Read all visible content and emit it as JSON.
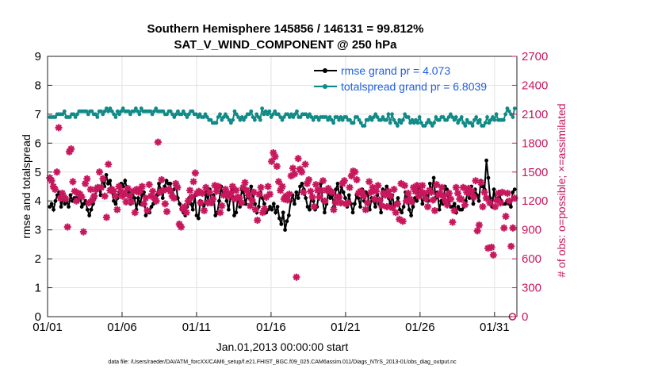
{
  "chart_data": {
    "type": "line",
    "title": "Southern Hemisphere 145856 / 146131 = 99.812%",
    "subtitle": "SAT_V_WIND_COMPONENT @ 250 hPa",
    "xlabel": "Jan.01,2013 00:00:00 start",
    "ylabel": "rmse and totalspread",
    "ylabel_right": "# of obs: o=possible; ×=assimilated",
    "footnote": "data file: /Users/raeder/DAI/ATM_forcXX/CAM6_setup/f.e21.FHIST_BGC.f09_025.CAM6assim.011/Diags_NTrS_2013-01/obs_diag_output.nc",
    "xlim": [
      0,
      31.5
    ],
    "ylim": [
      0,
      9
    ],
    "ylim_right": [
      0,
      2700
    ],
    "x_ticks": [
      0,
      5,
      10,
      15,
      20,
      25,
      30
    ],
    "x_tick_labels": [
      "01/01",
      "01/06",
      "01/11",
      "01/16",
      "01/21",
      "01/26",
      "01/31"
    ],
    "y_ticks": [
      "0",
      "1",
      "2",
      "3",
      "4",
      "5",
      "6",
      "7",
      "8",
      "9"
    ],
    "y_ticks_right": [
      "0",
      "300",
      "600",
      "900",
      "1200",
      "1500",
      "1800",
      "2100",
      "2400",
      "2700"
    ],
    "grid": true,
    "legend_position": "top-right",
    "series": [
      {
        "name": "rmse grand pr = 4.073",
        "color": "#000000",
        "marker": "circle",
        "values": [
          3.8,
          3.9,
          3.7,
          4.0,
          4.2,
          4.3,
          3.8,
          4.1,
          3.9,
          4.0,
          3.8,
          4.2,
          4.0,
          4.1,
          4.1,
          4.0,
          4.2,
          3.8,
          3.9,
          4.0,
          3.7,
          3.5,
          3.7,
          3.9,
          4.1,
          4.4,
          4.5,
          4.2,
          4.8,
          4.5,
          4.9,
          4.6,
          4.7,
          4.3,
          4.0,
          3.9,
          4.1,
          4.3,
          4.6,
          4.5,
          4.7,
          4.4,
          4.3,
          3.9,
          4.2,
          4.1,
          3.7,
          4.1,
          3.9,
          4.2,
          4.3,
          3.5,
          3.6,
          3.6,
          3.8,
          3.9,
          4.0,
          4.2,
          4.6,
          4.4,
          4.1,
          4.5,
          4.7,
          4.6,
          4.6,
          4.2,
          4.4,
          4.6,
          4.1,
          3.9,
          3.7,
          3.6,
          3.5,
          3.8,
          4.1,
          3.9,
          3.7,
          4.2,
          3.5,
          3.4,
          4.0,
          3.9,
          3.7,
          4.3,
          4.0,
          4.4,
          3.9,
          4.2,
          3.5,
          3.6,
          4.0,
          4.5,
          4.2,
          4.3,
          4.0,
          3.7,
          4.1,
          4.4,
          3.5,
          3.6,
          4.1,
          3.8,
          4.4,
          4.3,
          3.9,
          4.2,
          4.1,
          4.5,
          4.2,
          3.9,
          3.6,
          3.8,
          4.3,
          4.1,
          3.9,
          3.6,
          3.7,
          3.8,
          3.7,
          3.9,
          3.6,
          3.8,
          3.4,
          3.2,
          3.6,
          3.0,
          3.3,
          3.5,
          4.0,
          4.2,
          3.9,
          4.3,
          4.1,
          4.5,
          4.6,
          4.4,
          4.1,
          3.8,
          3.7,
          4.2,
          4.0,
          3.7,
          3.8,
          4.3,
          4.6,
          4.0,
          3.6,
          3.9,
          4.3,
          4.1,
          4.2,
          3.8,
          4.4,
          4.6,
          4.1,
          4.5,
          4.3,
          4.1,
          3.8,
          4.2,
          3.9,
          3.6,
          3.9,
          4.2,
          4.1,
          3.8,
          4.4,
          4.0,
          4.3,
          4.2,
          3.7,
          4.1,
          4.0,
          3.8,
          4.2,
          3.9,
          3.6,
          4.4,
          4.3,
          4.5,
          4.1,
          3.9,
          4.2,
          3.8,
          3.9,
          4.1,
          3.7,
          3.6,
          3.8,
          4.3,
          4.1,
          3.7,
          3.5,
          3.8,
          4.1,
          4.0,
          4.5,
          4.2,
          3.9,
          4.3,
          4.2,
          4.0,
          4.6,
          4.3,
          4.8,
          4.1,
          4.3,
          3.7,
          4.0,
          3.9,
          4.5,
          4.4,
          4.0,
          3.8,
          3.8,
          3.9,
          3.6,
          3.8,
          3.7,
          3.7,
          3.8,
          4.0,
          4.3,
          4.1,
          4.5,
          3.9,
          4.4,
          4.2,
          4.0,
          4.7,
          4.5,
          4.4,
          5.4,
          4.8,
          4.1,
          3.8,
          4.4,
          4.0,
          4.1,
          4.2,
          4.0,
          3.9,
          3.9,
          4.0,
          3.9,
          3.8,
          4.3,
          4.4
        ]
      },
      {
        "name": "totalspread grand pr = 6.8039",
        "color": "#108a86",
        "marker": "circle",
        "values": [
          6.9,
          6.9,
          6.9,
          6.9,
          7.0,
          7.0,
          7.0,
          7.0,
          7.1,
          6.9,
          6.9,
          6.9,
          7.0,
          7.0,
          6.9,
          7.0,
          7.1,
          7.1,
          7.1,
          7.1,
          7.1,
          7.0,
          7.1,
          7.1,
          7.0,
          7.0,
          6.9,
          7.1,
          7.1,
          7.0,
          7.1,
          7.2,
          7.1,
          7.2,
          7.1,
          7.0,
          6.9,
          7.1,
          7.0,
          7.1,
          7.2,
          7.1,
          7.1,
          7.1,
          7.0,
          7.1,
          7.1,
          7.2,
          7.1,
          7.0,
          7.2,
          7.1,
          7.1,
          7.1,
          7.1,
          7.1,
          7.0,
          7.1,
          7.2,
          7.1,
          7.1,
          7.1,
          7.1,
          7.0,
          7.0,
          7.1,
          7.1,
          7.0,
          6.9,
          7.0,
          7.1,
          7.0,
          7.0,
          7.1,
          7.0,
          6.9,
          7.0,
          7.1,
          7.1,
          7.0,
          7.0,
          6.9,
          7.0,
          6.9,
          6.9,
          7.0,
          6.9,
          6.8,
          6.8,
          6.7,
          6.7,
          6.7,
          6.9,
          7.0,
          6.8,
          6.9,
          7.0,
          6.9,
          6.8,
          6.7,
          6.8,
          7.1,
          7.0,
          6.9,
          6.8,
          6.9,
          6.8,
          6.9,
          7.0,
          7.0,
          7.1,
          6.9,
          6.8,
          7.0,
          6.9,
          6.8,
          7.2,
          7.0,
          7.1,
          7.0,
          7.1,
          6.9,
          7.0,
          7.1,
          7.0,
          7.0,
          6.9,
          6.8,
          6.9,
          7.0,
          7.0,
          6.9,
          7.0,
          6.9,
          7.0,
          7.1,
          6.9,
          6.9,
          7.0,
          7.0,
          7.0,
          6.9,
          7.0,
          6.9,
          6.8,
          6.9,
          6.9,
          6.8,
          6.9,
          6.9,
          6.9,
          6.9,
          6.8,
          6.9,
          6.8,
          6.7,
          6.9,
          6.9,
          6.8,
          6.9,
          6.8,
          6.9,
          6.9,
          6.8,
          6.8,
          6.7,
          6.7,
          6.9,
          6.9,
          6.8,
          6.7,
          6.6,
          6.6,
          6.8,
          6.8,
          6.9,
          6.8,
          6.9,
          7.0,
          6.9,
          6.8,
          6.8,
          6.9,
          6.8,
          6.8,
          7.0,
          6.7,
          7.0,
          6.8,
          6.7,
          6.6,
          6.8,
          6.7,
          6.8,
          7.0,
          6.9,
          6.9,
          6.7,
          6.8,
          6.7,
          6.8,
          6.7,
          6.9,
          6.7,
          6.6,
          6.6,
          6.7,
          6.8,
          6.7,
          6.6,
          6.7,
          6.9,
          6.8,
          6.8,
          6.9,
          6.9,
          6.8,
          6.8,
          6.9,
          7.0,
          6.9,
          6.8,
          6.9,
          6.7,
          6.8,
          6.9,
          6.7,
          6.6,
          6.8,
          6.7,
          6.7,
          6.6,
          6.8,
          6.9,
          6.7,
          6.8,
          6.6,
          6.6,
          6.7,
          6.9,
          6.7,
          6.8,
          6.9,
          6.8,
          7.0,
          6.8,
          6.8,
          6.8,
          6.8,
          7.0,
          7.2,
          7.1,
          7.0,
          6.9,
          7.2
        ]
      },
      {
        "name": "# of obs assimilated",
        "color": "#c8175d",
        "marker": "x",
        "axis": "right",
        "values": [
          1440,
          1410,
          1350,
          1320,
          1500,
          1960,
          1230,
          1280,
          1240,
          1220,
          930,
          1710,
          1740,
          1400,
          1300,
          1200,
          1280,
          1270,
          1240,
          880,
          1380,
          1430,
          1180,
          1320,
          1210,
          1250,
          1320,
          1340,
          1500,
          1340,
          1430,
          1250,
          1030,
          1580,
          1310,
          1320,
          1300,
          1250,
          1110,
          1350,
          1300,
          1250,
          1280,
          1190,
          1330,
          1250,
          1190,
          1300,
          1080,
          1320,
          1290,
          1310,
          1350,
          1170,
          1230,
          1100,
          1370,
          1250,
          1300,
          1230,
          1200,
          1810,
          1290,
          1420,
          1310,
          1170,
          1090,
          1320,
          1300,
          1250,
          1230,
          1380,
          1340,
          960,
          930,
          1120,
          1140,
          1080,
          1200,
          1310,
          1240,
          1400,
          1490,
          1280,
          1300,
          1180,
          1280,
          1100,
          1340,
          1180,
          1290,
          1180,
          1220,
          1360,
          1300,
          1350,
          1080,
          1150,
          1260,
          1320,
          1280,
          1250,
          1280,
          1350,
          1220,
          1310,
          1240,
          1230,
          1180,
          1340,
          1390,
          1310,
          1260,
          1150,
          1210,
          1290,
          1110,
          1000,
          1270,
          1340,
          1080,
          1120,
          1240,
          1350,
          1270,
          1610,
          1700,
          1660,
          1560,
          1400,
          1310,
          1350,
          1220,
          1250,
          1210,
          1270,
          1460,
          1540,
          1480,
          410,
          1640,
          1530,
          1500,
          1290,
          1580,
          1380,
          1420,
          1300,
          1240,
          1140,
          1370,
          1310,
          1240,
          1310,
          1410,
          1200,
          1310,
          1330,
          1300,
          1290,
          1110,
          1180,
          1240,
          1240,
          1180,
          1380,
          1410,
          1170,
          1180,
          1340,
          1460,
          1510,
          1500,
          1420,
          1280,
          1300,
          1290,
          1250,
          1110,
          1180,
          1400,
          1290,
          1340,
          1220,
          1300,
          1360,
          1210,
          1150,
          1280,
          1260,
          1140,
          1300,
          1250,
          1130,
          1320,
          1080,
          1170,
          1010,
          1380,
          990,
          1360,
          1200,
          1280,
          1220,
          1190,
          1340,
          1300,
          1360,
          1250,
          1300,
          1360,
          1280,
          1220,
          1140,
          1310,
          1290,
          1210,
          1100,
          1370,
          1260,
          1280,
          1340,
          1250,
          1200,
          1160,
          1280,
          1220,
          980,
          1100,
          1340,
          1280,
          1220,
          1220,
          1340,
          1160,
          1290,
          1330,
          1280,
          1300,
          1240,
          1410,
          890,
          950,
          1390,
          1140,
          1290,
          1230,
          710,
          1180,
          720,
          640,
          1140,
          1210,
          1280,
          1180,
          1290,
          920,
          1040,
          1280,
          1200,
          730,
          920,
          1230
        ]
      },
      {
        "name": "# of obs possible",
        "color": "#c8175d",
        "marker": "circle-open",
        "axis": "right",
        "values": [
          0
        ]
      }
    ]
  }
}
